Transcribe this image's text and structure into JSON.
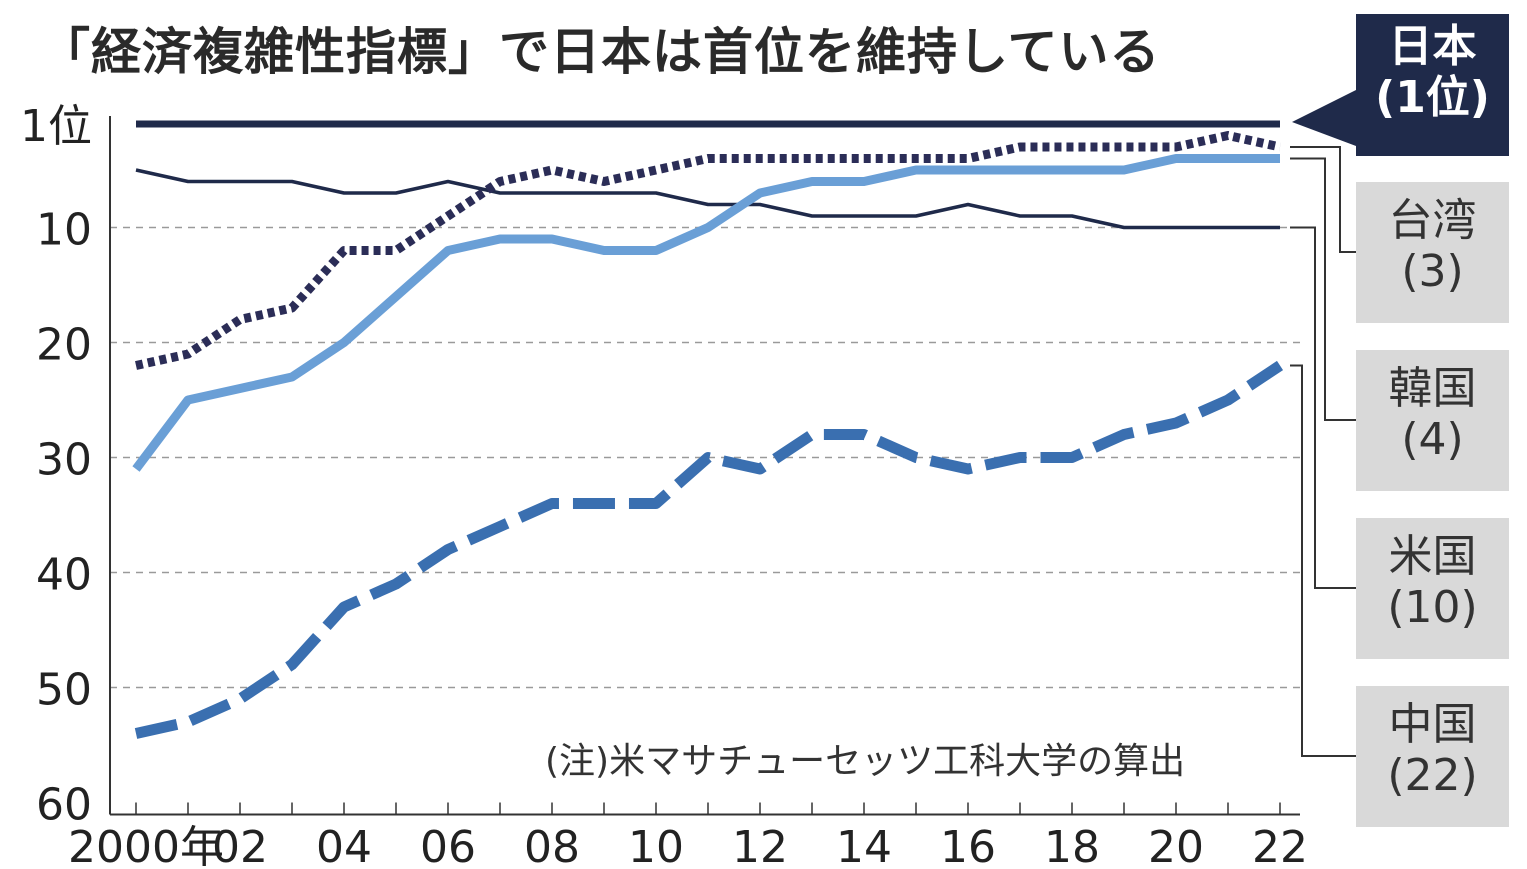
{
  "title": "「経済複雑性指標」で日本は首位を維持している",
  "note": "(注)米マサチューセッツ工科大学の算出",
  "colors": {
    "japan": "#1f2a4a",
    "taiwan": "#2b2d57",
    "korea": "#6a9fd6",
    "usa": "#1f2a4a",
    "china": "#3a6fb0",
    "grid": "#9a9a9a",
    "axis": "#333333"
  },
  "chart_data": {
    "type": "line",
    "title": "「経済複雑性指標」で日本は首位を維持している",
    "xlabel": "",
    "ylabel": "",
    "x": [
      2000,
      2001,
      2002,
      2003,
      2004,
      2005,
      2006,
      2007,
      2008,
      2009,
      2010,
      2011,
      2012,
      2013,
      2014,
      2015,
      2016,
      2017,
      2018,
      2019,
      2020,
      2021,
      2022
    ],
    "x_tick_values": [
      2000,
      2002,
      2004,
      2006,
      2008,
      2010,
      2012,
      2014,
      2016,
      2018,
      2020,
      2022
    ],
    "x_tick_labels": [
      "2000年",
      "02",
      "04",
      "06",
      "08",
      "10",
      "12",
      "14",
      "16",
      "18",
      "20",
      "22"
    ],
    "y_tick_values": [
      1,
      10,
      20,
      30,
      40,
      50,
      60
    ],
    "y_tick_labels": [
      "1位",
      "10",
      "20",
      "30",
      "40",
      "50",
      "60"
    ],
    "ylim": [
      1,
      60
    ],
    "y_inverted": true,
    "grid": true,
    "series": [
      {
        "name": "日本",
        "rank_label": "(1位)",
        "style": "solid-thick",
        "values": [
          1,
          1,
          1,
          1,
          1,
          1,
          1,
          1,
          1,
          1,
          1,
          1,
          1,
          1,
          1,
          1,
          1,
          1,
          1,
          1,
          1,
          1,
          1
        ]
      },
      {
        "name": "台湾",
        "rank_label": "(3)",
        "style": "dotted",
        "values": [
          22,
          21,
          18,
          17,
          12,
          12,
          9,
          6,
          5,
          6,
          5,
          4,
          4,
          4,
          4,
          4,
          4,
          3,
          3,
          3,
          3,
          2,
          3
        ]
      },
      {
        "name": "韓国",
        "rank_label": "(4)",
        "style": "solid-light",
        "values": [
          31,
          25,
          24,
          23,
          20,
          16,
          12,
          11,
          11,
          12,
          12,
          10,
          7,
          6,
          6,
          5,
          5,
          5,
          5,
          5,
          4,
          4,
          4
        ]
      },
      {
        "name": "米国",
        "rank_label": "(10)",
        "style": "solid-thin",
        "values": [
          5,
          6,
          6,
          6,
          7,
          7,
          6,
          7,
          7,
          7,
          7,
          8,
          8,
          9,
          9,
          9,
          8,
          9,
          9,
          10,
          10,
          10,
          10
        ]
      },
      {
        "name": "中国",
        "rank_label": "(22)",
        "style": "dashed",
        "values": [
          54,
          53,
          51,
          48,
          43,
          41,
          38,
          36,
          34,
          34,
          34,
          30,
          31,
          28,
          28,
          30,
          31,
          30,
          30,
          28,
          27,
          25,
          22
        ]
      }
    ]
  }
}
